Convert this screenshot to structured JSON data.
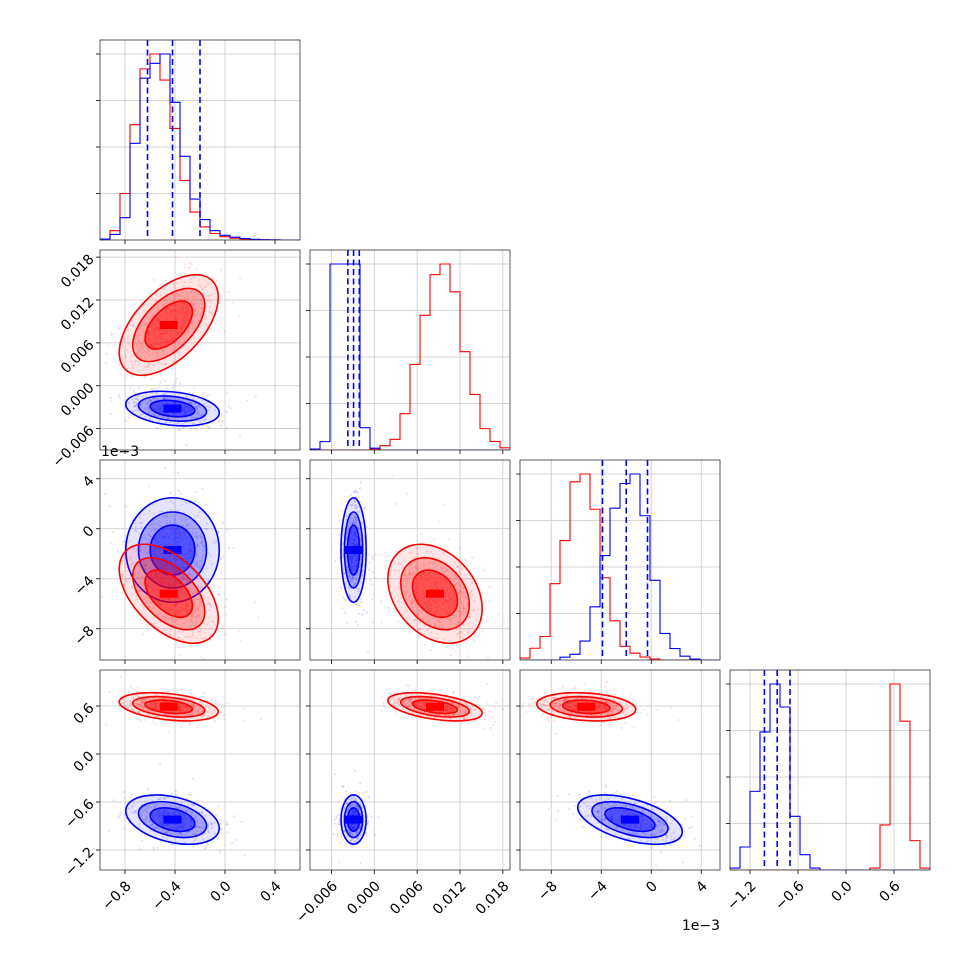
{
  "chart_data": {
    "type": "corner",
    "grid": true,
    "series": [
      {
        "name": "",
        "color": "#ff0000"
      },
      {
        "name": "",
        "color": "#0000ff"
      }
    ],
    "parameters": [
      {
        "index": 0,
        "range": [
          -1.0,
          0.6
        ],
        "ticks": [
          "−0.8",
          "−0.4",
          "0.0",
          "0.4"
        ],
        "tick_values": [
          -0.8,
          -0.4,
          0.0,
          0.4
        ]
      },
      {
        "index": 1,
        "range": [
          -0.009,
          0.019
        ],
        "ticks": [
          "−0.006",
          "0.000",
          "0.006",
          "0.012",
          "0.018"
        ],
        "tick_values": [
          -0.006,
          0.0,
          0.006,
          0.012,
          0.018
        ]
      },
      {
        "index": 2,
        "range": [
          -0.0105,
          0.0055
        ],
        "ticks": [
          "−8",
          "−4",
          "0",
          "4"
        ],
        "tick_values": [
          -0.008,
          -0.004,
          0.0,
          0.004
        ],
        "offset_label": "1e−3"
      },
      {
        "index": 3,
        "range": [
          -1.45,
          1.05
        ],
        "ticks": [
          "−1.2",
          "−0.6",
          "0.0",
          "0.6"
        ],
        "tick_values": [
          -1.2,
          -0.6,
          0.0,
          0.6
        ]
      }
    ],
    "quantile_lines_color": "#0000ff",
    "quantiles": [
      [
        -0.62,
        -0.42,
        -0.2
      ],
      [
        -0.0037,
        -0.0029,
        -0.0021
      ],
      [
        -0.0039,
        -0.002,
        -0.0003
      ],
      [
        -1.02,
        -0.86,
        -0.7
      ]
    ],
    "marginals": [
      {
        "bins": [
          -1.0,
          -0.92,
          -0.84,
          -0.76,
          -0.68,
          -0.6,
          -0.52,
          -0.44,
          -0.36,
          -0.28,
          -0.2,
          -0.12,
          -0.04,
          0.04,
          0.12,
          0.2,
          0.28,
          0.36,
          0.44,
          0.52,
          0.6
        ],
        "red": [
          0.005,
          0.05,
          0.25,
          0.62,
          0.92,
          1.0,
          0.86,
          0.6,
          0.32,
          0.15,
          0.07,
          0.035,
          0.018,
          0.01,
          0.005,
          0.002,
          0.001,
          0,
          0,
          0
        ],
        "blue": [
          0.005,
          0.03,
          0.12,
          0.52,
          0.87,
          0.95,
          1.0,
          0.74,
          0.45,
          0.22,
          0.11,
          0.05,
          0.025,
          0.015,
          0.008,
          0.004,
          0.002,
          0.001,
          0,
          0
        ]
      },
      {
        "bins": [
          -0.009,
          -0.0076,
          -0.0062,
          -0.0048,
          -0.0034,
          -0.002,
          -0.0006,
          0.0008,
          0.0022,
          0.0036,
          0.005,
          0.0064,
          0.0078,
          0.0092,
          0.0106,
          0.012,
          0.0134,
          0.0148,
          0.0162,
          0.0176,
          0.019
        ],
        "red": [
          0,
          0,
          0,
          0,
          0,
          0,
          0.005,
          0.02,
          0.05,
          0.17,
          0.4,
          0.63,
          0.82,
          0.87,
          0.74,
          0.46,
          0.26,
          0.1,
          0.04,
          0.01
        ],
        "blue": [
          0.005,
          0.045,
          1.0,
          1.0,
          1.0,
          0.12,
          0.01,
          0,
          0,
          0,
          0,
          0,
          0,
          0,
          0,
          0,
          0,
          0,
          0,
          0
        ]
      },
      {
        "bins": [
          -0.0105,
          -0.0097,
          -0.0089,
          -0.0081,
          -0.0073,
          -0.0065,
          -0.0057,
          -0.0049,
          -0.0041,
          -0.0033,
          -0.0025,
          -0.0017,
          -0.0009,
          -0.0001,
          0.0007,
          0.0015,
          0.0023,
          0.0031,
          0.0039,
          0.0047,
          0.0055
        ],
        "red": [
          0.01,
          0.06,
          0.12,
          0.39,
          0.61,
          0.91,
          0.95,
          0.77,
          0.42,
          0.2,
          0.07,
          0.035,
          0.015,
          0.005,
          0,
          0,
          0,
          0,
          0,
          0
        ],
        "blue": [
          0,
          0,
          0,
          0,
          0.015,
          0.03,
          0.1,
          0.28,
          0.55,
          0.8,
          0.93,
          0.98,
          0.76,
          0.42,
          0.14,
          0.06,
          0.02,
          0.005,
          0,
          0
        ]
      },
      {
        "bins": [
          -1.45,
          -1.325,
          -1.2,
          -1.075,
          -0.95,
          -0.825,
          -0.7,
          -0.575,
          -0.45,
          -0.325,
          -0.2,
          -0.075,
          0.05,
          0.175,
          0.3,
          0.425,
          0.55,
          0.675,
          0.8,
          0.925,
          1.05
        ],
        "red": [
          0,
          0,
          0,
          0,
          0,
          0,
          0,
          0,
          0,
          0,
          0,
          0,
          0,
          0,
          0.01,
          0.23,
          0.95,
          0.76,
          0.15,
          0.01
        ],
        "blue": [
          0.01,
          0.12,
          0.41,
          0.72,
          0.97,
          0.85,
          0.28,
          0.08,
          0.01,
          0,
          0,
          0,
          0,
          0,
          0,
          0,
          0,
          0,
          0,
          0
        ]
      }
    ],
    "pairs": [
      {
        "row": 1,
        "col": 0,
        "red": {
          "mean": [
            -0.45,
            0.0085
          ],
          "sd": [
            0.18,
            0.0032
          ],
          "rho": 0.55
        },
        "blue": {
          "mean": [
            -0.42,
            -0.0032
          ],
          "sd": [
            0.17,
            0.0011
          ],
          "rho": -0.25
        }
      },
      {
        "row": 2,
        "col": 0,
        "red": {
          "mean": [
            -0.45,
            -0.0052
          ],
          "sd": [
            0.18,
            0.0018
          ],
          "rho": -0.5
        },
        "blue": {
          "mean": [
            -0.42,
            -0.0017
          ],
          "sd": [
            0.17,
            0.0019
          ],
          "rho": 0.0
        }
      },
      {
        "row": 2,
        "col": 1,
        "red": {
          "mean": [
            0.0085,
            -0.0052
          ],
          "sd": [
            0.003,
            0.0018
          ],
          "rho": -0.3
        },
        "blue": {
          "mean": [
            -0.0029,
            -0.0017
          ],
          "sd": [
            0.0008,
            0.0019
          ],
          "rho": 0.0
        }
      },
      {
        "row": 3,
        "col": 0,
        "red": {
          "mean": [
            -0.45,
            0.59
          ],
          "sd": [
            0.18,
            0.08
          ],
          "rho": -0.35
        },
        "blue": {
          "mean": [
            -0.42,
            -0.82
          ],
          "sd": [
            0.17,
            0.14
          ],
          "rho": -0.35
        }
      },
      {
        "row": 3,
        "col": 1,
        "red": {
          "mean": [
            0.0085,
            0.59
          ],
          "sd": [
            0.003,
            0.08
          ],
          "rho": -0.45
        },
        "blue": {
          "mean": [
            -0.0029,
            -0.82
          ],
          "sd": [
            0.0008,
            0.14
          ],
          "rho": 0.0
        }
      },
      {
        "row": 3,
        "col": 2,
        "red": {
          "mean": [
            -0.0052,
            0.59
          ],
          "sd": [
            0.0018,
            0.08
          ],
          "rho": -0.2
        },
        "blue": {
          "mean": [
            -0.0017,
            -0.82
          ],
          "sd": [
            0.0019,
            0.14
          ],
          "rho": -0.5
        }
      }
    ]
  }
}
